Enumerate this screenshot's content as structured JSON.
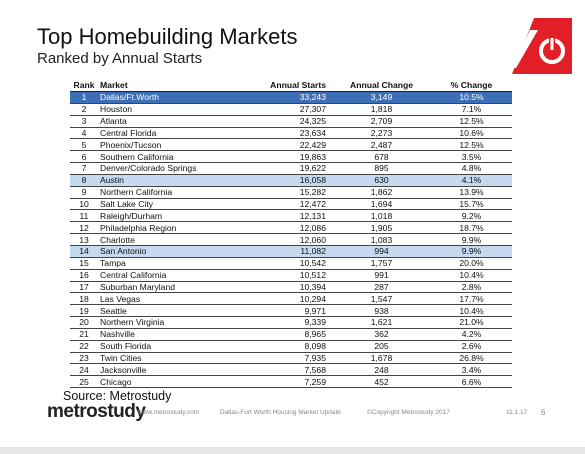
{
  "header": {
    "title": "Top Homebuilding Markets",
    "subtitle": "Ranked by Annual Starts"
  },
  "table": {
    "columns": [
      "Rank",
      "Market",
      "Annual Starts",
      "Annual Change",
      "% Change"
    ],
    "rows": [
      [
        "1",
        "Dallas/Ft.Worth",
        "33,243",
        "3,149",
        "10.5%"
      ],
      [
        "2",
        "Houston",
        "27,307",
        "1,818",
        "7.1%"
      ],
      [
        "3",
        "Atlanta",
        "24,325",
        "2,709",
        "12.5%"
      ],
      [
        "4",
        "Central Florida",
        "23,634",
        "2,273",
        "10.6%"
      ],
      [
        "5",
        "Phoenix/Tucson",
        "22,429",
        "2,487",
        "12.5%"
      ],
      [
        "6",
        "Southern California",
        "19,863",
        "678",
        "3.5%"
      ],
      [
        "7",
        "Denver/Colorado Springs",
        "19,622",
        "895",
        "4.8%"
      ],
      [
        "8",
        "Austin",
        "16,058",
        "630",
        "4.1%"
      ],
      [
        "9",
        "Northern California",
        "15,282",
        "1,862",
        "13.9%"
      ],
      [
        "10",
        "Salt Lake City",
        "12,472",
        "1,694",
        "15.7%"
      ],
      [
        "11",
        "Raleigh/Durham",
        "12,131",
        "1,018",
        "9.2%"
      ],
      [
        "12",
        "Philadelphia Region",
        "12,086",
        "1,905",
        "18.7%"
      ],
      [
        "13",
        "Charlotte",
        "12,060",
        "1,083",
        "9.9%"
      ],
      [
        "14",
        "San Antonio",
        "11,082",
        "994",
        "9.9%"
      ],
      [
        "15",
        "Tampa",
        "10,542",
        "1,757",
        "20.0%"
      ],
      [
        "16",
        "Central California",
        "10,512",
        "991",
        "10.4%"
      ],
      [
        "17",
        "Suburban Maryland",
        "10,394",
        "287",
        "2.8%"
      ],
      [
        "18",
        "Las Vegas",
        "10,294",
        "1,547",
        "17.7%"
      ],
      [
        "19",
        "Seattle",
        "9,971",
        "938",
        "10.4%"
      ],
      [
        "20",
        "Northern Virginia",
        "9,339",
        "1,621",
        "21.0%"
      ],
      [
        "21",
        "Nashville",
        "8,965",
        "362",
        "4.2%"
      ],
      [
        "22",
        "South Florida",
        "8,098",
        "205",
        "2.6%"
      ],
      [
        "23",
        "Twin Cities",
        "7,935",
        "1,678",
        "26.8%"
      ],
      [
        "24",
        "Jacksonville",
        "7,568",
        "248",
        "3.4%"
      ],
      [
        "25",
        "Chicago",
        "7,259",
        "452",
        "6.6%"
      ]
    ]
  },
  "source": "Source: Metrostudy",
  "footer": {
    "logo": "metrostudy",
    "url": "www.metrostudy.com",
    "report": "Dallas-Fort Worth Housing Market Update",
    "copyright": "©Copyright Metrostudy 2017",
    "date": "11.1.17",
    "page": "6"
  }
}
